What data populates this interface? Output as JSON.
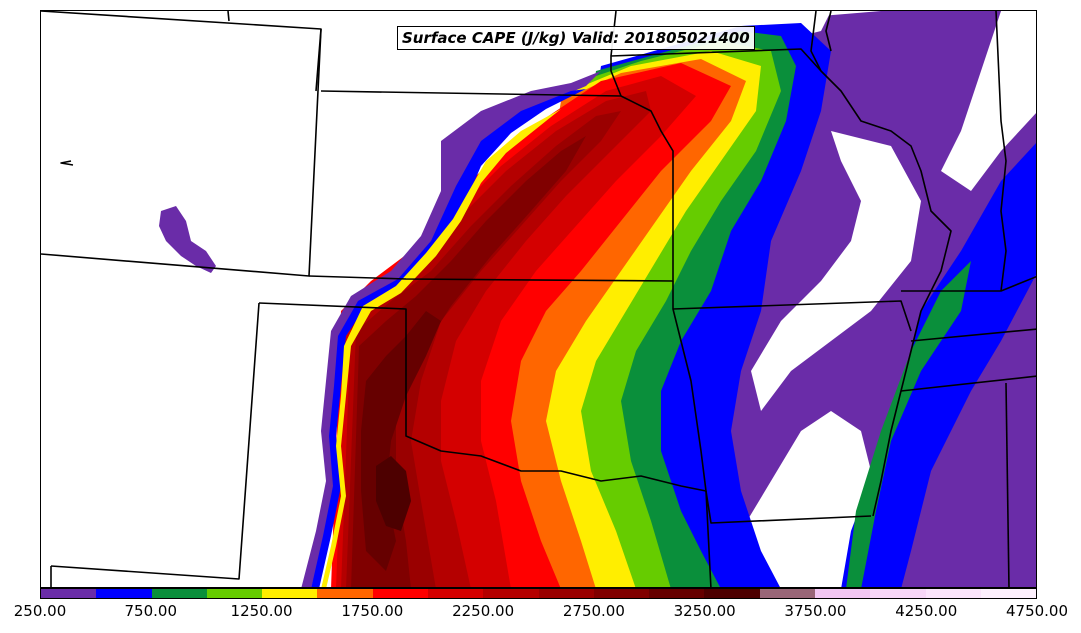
{
  "title": "Surface CAPE (J/kg) Valid: 201805021400",
  "colorbar": {
    "ticks": [
      "250.00",
      "750.00",
      "1250.00",
      "1750.00",
      "2250.00",
      "2750.00",
      "3250.00",
      "3750.00",
      "4250.00",
      "4750.00"
    ],
    "bins": [
      {
        "min": 250,
        "max": 500,
        "color": "#6a2ca8"
      },
      {
        "min": 500,
        "max": 750,
        "color": "#0000ff"
      },
      {
        "min": 750,
        "max": 1000,
        "color": "#0a8f3b"
      },
      {
        "min": 1000,
        "max": 1250,
        "color": "#66cc00"
      },
      {
        "min": 1250,
        "max": 1500,
        "color": "#ffee00"
      },
      {
        "min": 1500,
        "max": 1750,
        "color": "#ff6600"
      },
      {
        "min": 1750,
        "max": 2000,
        "color": "#ff0000"
      },
      {
        "min": 2000,
        "max": 2250,
        "color": "#d40000"
      },
      {
        "min": 2250,
        "max": 2500,
        "color": "#b40000"
      },
      {
        "min": 2500,
        "max": 2750,
        "color": "#9a0000"
      },
      {
        "min": 2750,
        "max": 3000,
        "color": "#800000"
      },
      {
        "min": 3000,
        "max": 3250,
        "color": "#660000"
      },
      {
        "min": 3250,
        "max": 3500,
        "color": "#4d0000"
      },
      {
        "min": 3500,
        "max": 3750,
        "color": "#996677"
      },
      {
        "min": 3750,
        "max": 4000,
        "color": "#f2c6f2"
      },
      {
        "min": 4000,
        "max": 4250,
        "color": "#f7d6f7"
      },
      {
        "min": 4250,
        "max": 4500,
        "color": "#fbe4fb"
      },
      {
        "min": 4500,
        "max": 4750,
        "color": "#fdf0fd"
      }
    ]
  }
}
